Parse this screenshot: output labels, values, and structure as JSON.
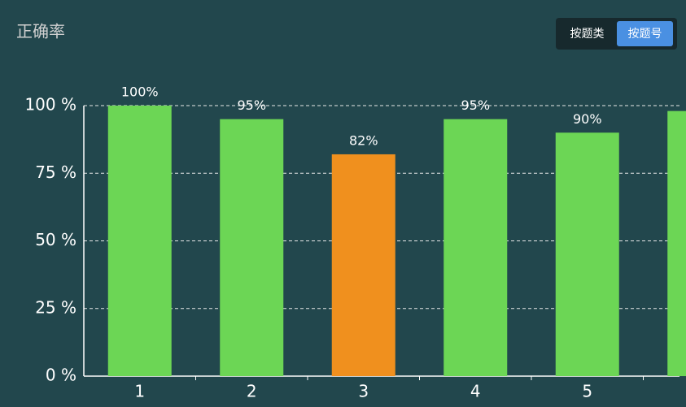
{
  "chart_data": {
    "type": "bar",
    "title": "正确率",
    "categories": [
      "1",
      "2",
      "3",
      "4",
      "5",
      null
    ],
    "values": [
      100,
      95,
      82,
      95,
      90,
      98
    ],
    "value_labels": [
      "100%",
      "95%",
      "82%",
      "95%",
      "90%",
      null
    ],
    "colors": [
      "#6cd655",
      "#6cd655",
      "#f0901e",
      "#6cd655",
      "#6cd655",
      "#6cd655"
    ],
    "ylim": [
      0,
      100
    ],
    "yticks": [
      {
        "value": 0,
        "label": "0 %"
      },
      {
        "value": 25,
        "label": "25 %"
      },
      {
        "value": 50,
        "label": "50 %"
      },
      {
        "value": 75,
        "label": "75 %"
      },
      {
        "value": 100,
        "label": "100 %"
      }
    ],
    "grid": true
  },
  "toggle": {
    "options": [
      "按题类",
      "按题号"
    ],
    "active": 1
  }
}
